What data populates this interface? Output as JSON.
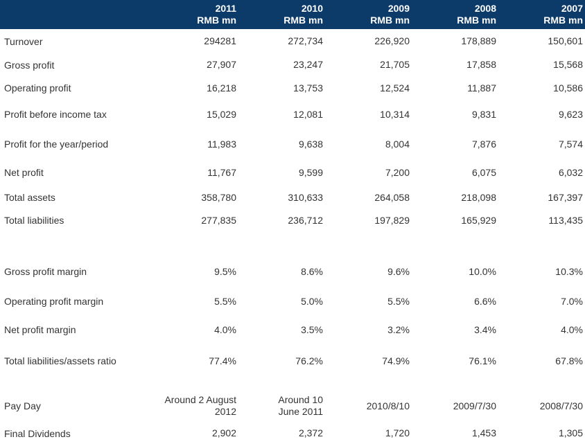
{
  "chart_data": {
    "type": "table",
    "header": {
      "years": [
        "2011",
        "2010",
        "2009",
        "2008",
        "2007"
      ],
      "unit": "RMB mn"
    },
    "rows": [
      {
        "label": "Turnover",
        "values": [
          "294281",
          "272,734",
          "226,920",
          "178,889",
          "150,601"
        ]
      },
      {
        "label": "Gross profit",
        "values": [
          "27,907",
          "23,247",
          "21,705",
          "17,858",
          "15,568"
        ]
      },
      {
        "label": "Operating profit",
        "values": [
          "16,218",
          "13,753",
          "12,524",
          "11,887",
          "10,586"
        ]
      },
      {
        "label": "Profit before income tax",
        "values": [
          "15,029",
          "12,081",
          "10,314",
          "9,831",
          "9,623"
        ]
      },
      {
        "label": "Profit for the year/period",
        "values": [
          "11,983",
          "9,638",
          "8,004",
          "7,876",
          "7,574"
        ]
      },
      {
        "label": "Net profit",
        "values": [
          "11,767",
          "9,599",
          "7,200",
          "6,075",
          "6,032"
        ]
      },
      {
        "label": "Total assets",
        "values": [
          "358,780",
          "310,633",
          "264,058",
          "218,098",
          "167,397"
        ]
      },
      {
        "label": "Total liabilities",
        "values": [
          "277,835",
          "236,712",
          "197,829",
          "165,929",
          "113,435"
        ]
      },
      {
        "label": "Gross profit margin",
        "values": [
          "9.5%",
          "8.6%",
          "9.6%",
          "10.0%",
          "10.3%"
        ]
      },
      {
        "label": "Operating profit margin",
        "values": [
          "5.5%",
          "5.0%",
          "5.5%",
          "6.6%",
          "7.0%"
        ]
      },
      {
        "label": "Net profit margin",
        "values": [
          "4.0%",
          "3.5%",
          "3.2%",
          "3.4%",
          "4.0%"
        ]
      },
      {
        "label": "Total liabilities/assets ratio",
        "values": [
          "77.4%",
          "76.2%",
          "74.9%",
          "76.1%",
          "67.8%"
        ]
      },
      {
        "label": "Pay Day",
        "values": [
          "Around 2 August\n2012",
          "Around 10\nJune 2011",
          "2010/8/10",
          "2009/7/30",
          "2008/7/30"
        ]
      },
      {
        "label": "Final Dividends",
        "values": [
          "2,902",
          "2,372",
          "1,720",
          "1,453",
          "1,305"
        ]
      }
    ],
    "colors": {
      "header_background": "#0c3a69",
      "header_text": "#ffffff",
      "body_text": "#333333"
    }
  }
}
